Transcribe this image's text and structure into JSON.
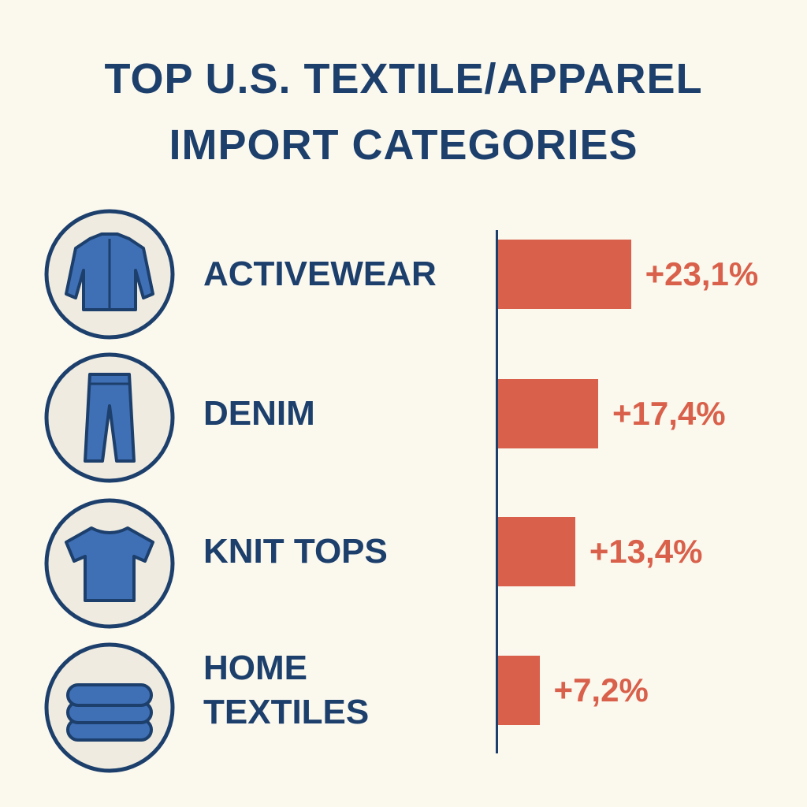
{
  "chart_data": {
    "type": "bar",
    "orientation": "horizontal",
    "title": "TOP U.S. TEXTILE/APPAREL IMPORT CATEGORIES",
    "categories": [
      "ACTIVEWEAR",
      "DENIM",
      "KNIT TOPS",
      "HOME TEXTILES"
    ],
    "values": [
      23.1,
      17.4,
      13.4,
      7.2
    ],
    "value_labels": [
      "+23,1%",
      "+17,4%",
      "+13,4%",
      "+7,2%"
    ],
    "color": "#d9604a"
  }
}
